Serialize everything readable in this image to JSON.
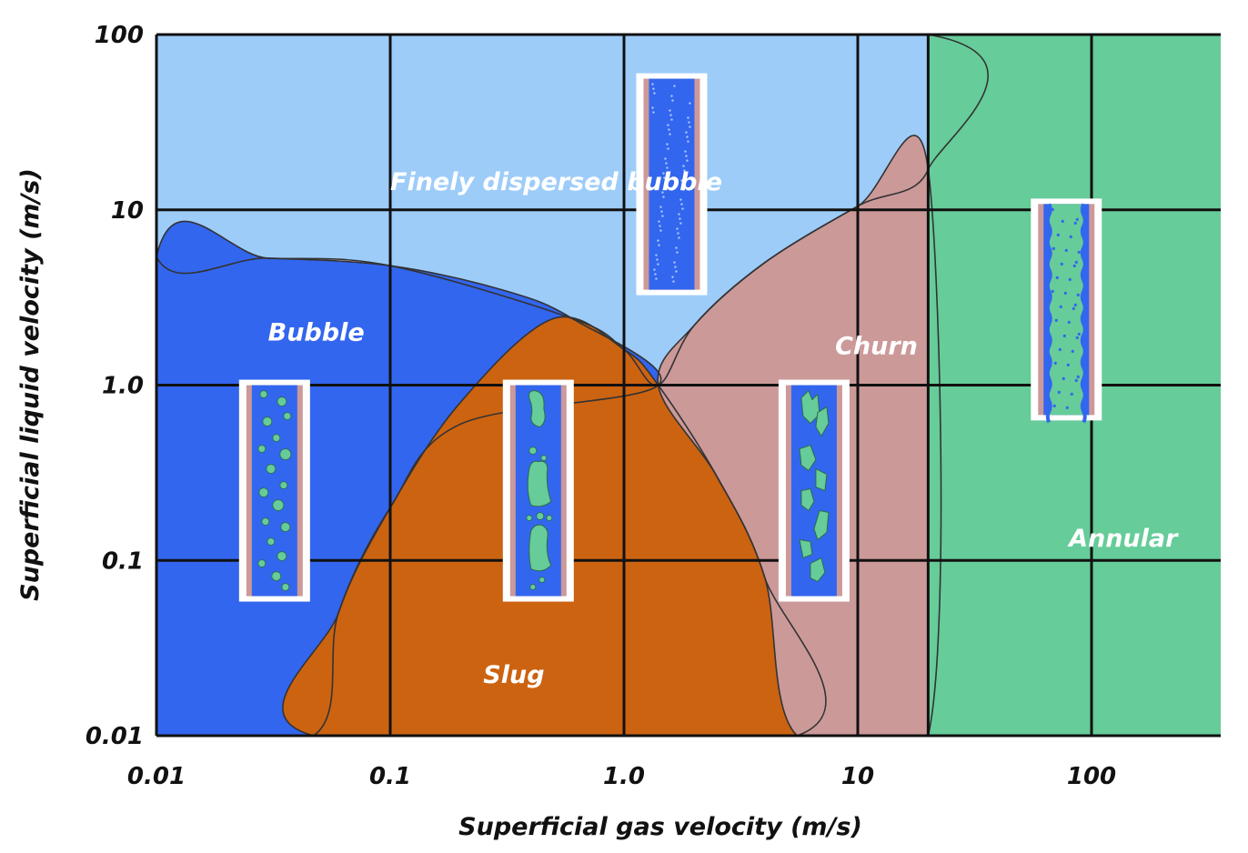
{
  "chart_data": {
    "type": "area",
    "title": "",
    "xlabel": "Superficial gas velocity (m/s)",
    "ylabel": "Superficial liquid velocity (m/s)",
    "x_scale": "log",
    "y_scale": "log",
    "xlim": [
      0.01,
      400
    ],
    "ylim": [
      0.01,
      100
    ],
    "x_ticks": [
      0.01,
      0.1,
      1.0,
      10,
      100
    ],
    "x_tick_labels": [
      "0.01",
      "0.1",
      "1.0",
      "10",
      "100"
    ],
    "y_ticks": [
      0.01,
      0.1,
      1.0,
      10,
      100
    ],
    "y_tick_labels": [
      "0.01",
      "0.1",
      "1.0",
      "10",
      "100"
    ],
    "grid": true,
    "regions": [
      {
        "name": "Finely dispersed bubble",
        "color": "#9dccf9",
        "polygon": [
          [
            0.01,
            100
          ],
          [
            20,
            100
          ],
          [
            20,
            17
          ],
          [
            10,
            10.5
          ],
          [
            4,
            5
          ],
          [
            2,
            2.2
          ],
          [
            1.4,
            1.0
          ],
          [
            1.0,
            1.6
          ],
          [
            0.6,
            2.4
          ],
          [
            0.1,
            4.8
          ],
          [
            0.03,
            5.3
          ],
          [
            0.01,
            5.4
          ]
        ]
      },
      {
        "name": "Bubble",
        "color": "#3366ee",
        "polygon": [
          [
            0.01,
            5.4
          ],
          [
            0.03,
            5.3
          ],
          [
            0.1,
            4.8
          ],
          [
            0.3,
            3.5
          ],
          [
            0.6,
            2.4
          ],
          [
            1.4,
            1.0
          ],
          [
            0.2,
            0.6
          ],
          [
            0.1,
            0.2
          ],
          [
            0.06,
            0.05
          ],
          [
            0.047,
            0.01
          ],
          [
            0.01,
            0.01
          ]
        ]
      },
      {
        "name": "Slug",
        "color": "#cc6311",
        "polygon": [
          [
            0.047,
            0.01
          ],
          [
            0.06,
            0.05
          ],
          [
            0.1,
            0.2
          ],
          [
            0.2,
            0.8
          ],
          [
            0.5,
            2.4
          ],
          [
            1.0,
            1.6
          ],
          [
            1.4,
            1.0
          ],
          [
            2.5,
            0.3
          ],
          [
            4,
            0.08
          ],
          [
            5.5,
            0.01
          ]
        ]
      },
      {
        "name": "Churn",
        "color": "#cc9999",
        "polygon": [
          [
            1.4,
            1.0
          ],
          [
            2,
            2.2
          ],
          [
            4,
            5
          ],
          [
            10,
            10.5
          ],
          [
            20,
            17
          ],
          [
            20,
            0.01
          ],
          [
            5.5,
            0.01
          ],
          [
            4,
            0.08
          ],
          [
            2.5,
            0.3
          ]
        ]
      },
      {
        "name": "Annular",
        "color": "#66cc99",
        "polygon": [
          [
            20,
            100
          ],
          [
            400,
            100
          ],
          [
            400,
            0.01
          ],
          [
            20,
            0.01
          ]
        ]
      }
    ],
    "region_labels": [
      {
        "text": "Finely dispersed bubble",
        "x": 0.1,
        "y": 13
      },
      {
        "text": "Bubble",
        "x": 0.03,
        "y": 1.8
      },
      {
        "text": "Slug",
        "x": 0.25,
        "y": 0.02
      },
      {
        "text": "Churn",
        "x": 8,
        "y": 1.5
      },
      {
        "text": "Annular",
        "x": 80,
        "y": 0.12
      }
    ],
    "flow_illustrations": [
      {
        "name": "bubble-flow-illustration",
        "pattern": "bubble",
        "x": 0.032,
        "y": 0.25
      },
      {
        "name": "slug-flow-illustration",
        "pattern": "slug",
        "x": 0.43,
        "y": 0.25
      },
      {
        "name": "churn-flow-illustration",
        "pattern": "churn",
        "x": 6.5,
        "y": 0.25
      },
      {
        "name": "dispersed-bubble-flow-illustration",
        "pattern": "dispersed",
        "x": 1.6,
        "y": 14
      },
      {
        "name": "annular-flow-illustration",
        "pattern": "annular",
        "x": 78,
        "y": 2.7
      }
    ],
    "colors": {
      "gas": "#66cc99",
      "liquid": "#3366ee",
      "pipe_wall": "#cc9999",
      "frame": "#ffffff",
      "grid": "#111111"
    }
  }
}
